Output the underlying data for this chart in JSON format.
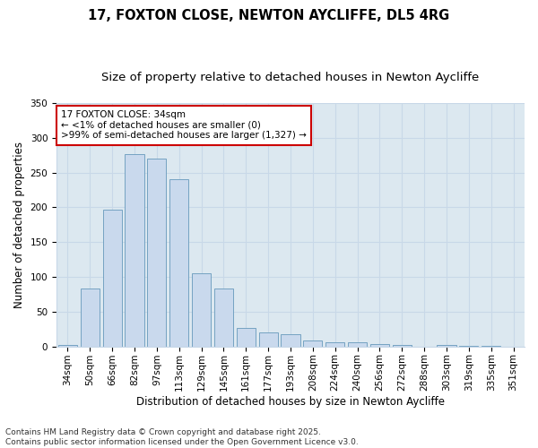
{
  "title_line1": "17, FOXTON CLOSE, NEWTON AYCLIFFE, DL5 4RG",
  "title_line2": "Size of property relative to detached houses in Newton Aycliffe",
  "xlabel": "Distribution of detached houses by size in Newton Aycliffe",
  "ylabel": "Number of detached properties",
  "categories": [
    "34sqm",
    "50sqm",
    "66sqm",
    "82sqm",
    "97sqm",
    "113sqm",
    "129sqm",
    "145sqm",
    "161sqm",
    "177sqm",
    "193sqm",
    "208sqm",
    "224sqm",
    "240sqm",
    "256sqm",
    "272sqm",
    "288sqm",
    "303sqm",
    "319sqm",
    "335sqm",
    "351sqm"
  ],
  "values": [
    2,
    83,
    197,
    277,
    270,
    240,
    105,
    83,
    27,
    20,
    17,
    8,
    6,
    6,
    3,
    2,
    0,
    2,
    1,
    1,
    0
  ],
  "bar_color": "#c9d9ed",
  "bar_edge_color": "#6699bb",
  "grid_color": "#c8d8e8",
  "background_color": "#dce8f0",
  "ylim": [
    0,
    350
  ],
  "yticks": [
    0,
    50,
    100,
    150,
    200,
    250,
    300,
    350
  ],
  "annotation_line1": "17 FOXTON CLOSE: 34sqm",
  "annotation_line2": "← <1% of detached houses are smaller (0)",
  "annotation_line3": ">99% of semi-detached houses are larger (1,327) →",
  "annotation_box_color": "#ffffff",
  "annotation_box_edge": "#cc0000",
  "footnote": "Contains HM Land Registry data © Crown copyright and database right 2025.\nContains public sector information licensed under the Open Government Licence v3.0.",
  "title_fontsize": 10.5,
  "subtitle_fontsize": 9.5,
  "axis_label_fontsize": 8.5,
  "tick_fontsize": 7.5,
  "annot_fontsize": 7.5,
  "footnote_fontsize": 6.5
}
